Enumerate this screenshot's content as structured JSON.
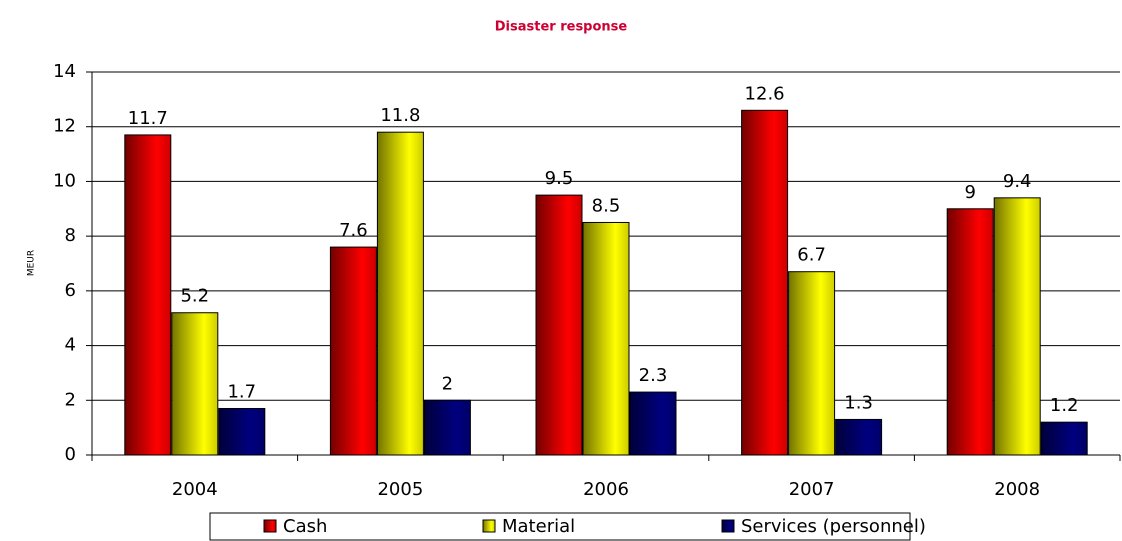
{
  "chart_data": {
    "type": "bar",
    "title": "Disaster response",
    "y_label": "MEUR",
    "categories": [
      "2004",
      "2005",
      "2006",
      "2007",
      "2008"
    ],
    "series": [
      {
        "name": "Cash",
        "color": "#ff0000",
        "values": [
          11.7,
          7.6,
          9.5,
          12.6,
          9
        ]
      },
      {
        "name": "Material",
        "color": "#ffff00",
        "values": [
          5.2,
          11.8,
          8.5,
          6.7,
          9.4
        ]
      },
      {
        "name": "Services (personnel)",
        "color": "#000080",
        "values": [
          1.7,
          2,
          2.3,
          1.3,
          1.2
        ]
      }
    ],
    "ylim": [
      0,
      14
    ],
    "yticks": [
      0,
      2,
      4,
      6,
      8,
      10,
      12,
      14
    ],
    "grid": true,
    "legend": "bottom"
  }
}
